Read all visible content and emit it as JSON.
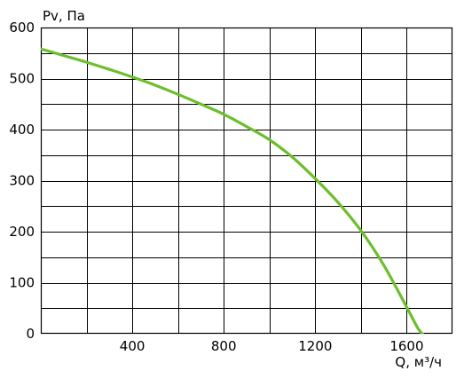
{
  "chart_data": {
    "type": "line",
    "title": "",
    "xlabel": "Q, м³/ч",
    "ylabel": "Pv, Па",
    "xlim": [
      0,
      1800
    ],
    "ylim": [
      0,
      600
    ],
    "x_ticks": [
      400,
      800,
      1200,
      1600
    ],
    "x_tick_labels": [
      "400",
      "800",
      "1200",
      "1600"
    ],
    "x_grid_step": 200,
    "y_ticks": [
      0,
      100,
      200,
      300,
      400,
      500,
      600
    ],
    "y_tick_labels": [
      "0",
      "100",
      "200",
      "300",
      "400",
      "500",
      "600"
    ],
    "y_grid_step": 50,
    "grid": true,
    "series": [
      {
        "color": "#6cbf2c",
        "x": [
          0,
          100,
          200,
          300,
          400,
          500,
          600,
          700,
          800,
          900,
          1000,
          1100,
          1200,
          1300,
          1400,
          1500,
          1600,
          1650,
          1680
        ],
        "y": [
          558,
          545,
          532,
          518,
          503,
          487,
          469,
          450,
          430,
          406,
          380,
          346,
          304,
          257,
          202,
          134,
          52,
          10,
          -5
        ]
      }
    ]
  }
}
